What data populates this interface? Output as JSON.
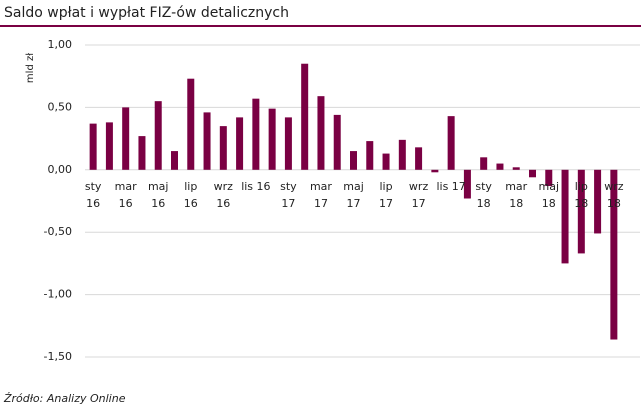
{
  "chart_data": {
    "type": "bar",
    "title": "Saldo wpłat i wypłat FIZ-ów detalicznych",
    "ylabel": "mld zł",
    "source": "Źródło: Analizy Online",
    "color": "#7a0043",
    "grid": true,
    "categories": [
      "sty\n16",
      null,
      "mar\n16",
      null,
      "maj\n16",
      null,
      "lip\n16",
      null,
      "wrz\n16",
      null,
      "lis 16",
      null,
      "sty\n17",
      null,
      "mar\n17",
      null,
      "maj\n17",
      null,
      "lip\n17",
      null,
      "wrz\n17",
      null,
      "lis 17",
      null,
      "sty\n18",
      null,
      "mar\n18",
      null,
      "maj\n18",
      null,
      "lip\n18",
      null,
      "wrz\n18"
    ],
    "values": [
      0.37,
      0.38,
      0.5,
      0.27,
      0.55,
      0.15,
      0.73,
      0.46,
      0.35,
      0.42,
      0.57,
      0.49,
      0.42,
      0.85,
      0.59,
      0.44,
      0.15,
      0.23,
      0.13,
      0.24,
      0.18,
      -0.02,
      0.43,
      -0.23,
      0.1,
      0.05,
      0.02,
      -0.06,
      -0.13,
      -0.75,
      -0.67,
      -0.51,
      -1.36
    ],
    "ylim": [
      -1.5,
      1.0
    ],
    "yticks": [
      {
        "value": -1.5,
        "label": "-1,50"
      },
      {
        "value": -1.0,
        "label": "-1,00"
      },
      {
        "value": -0.5,
        "label": "-0,50"
      },
      {
        "value": 0,
        "label": "0,00"
      },
      {
        "value": 0.5,
        "label": "0,50"
      },
      {
        "value": 1.0,
        "label": "1,00"
      }
    ]
  }
}
